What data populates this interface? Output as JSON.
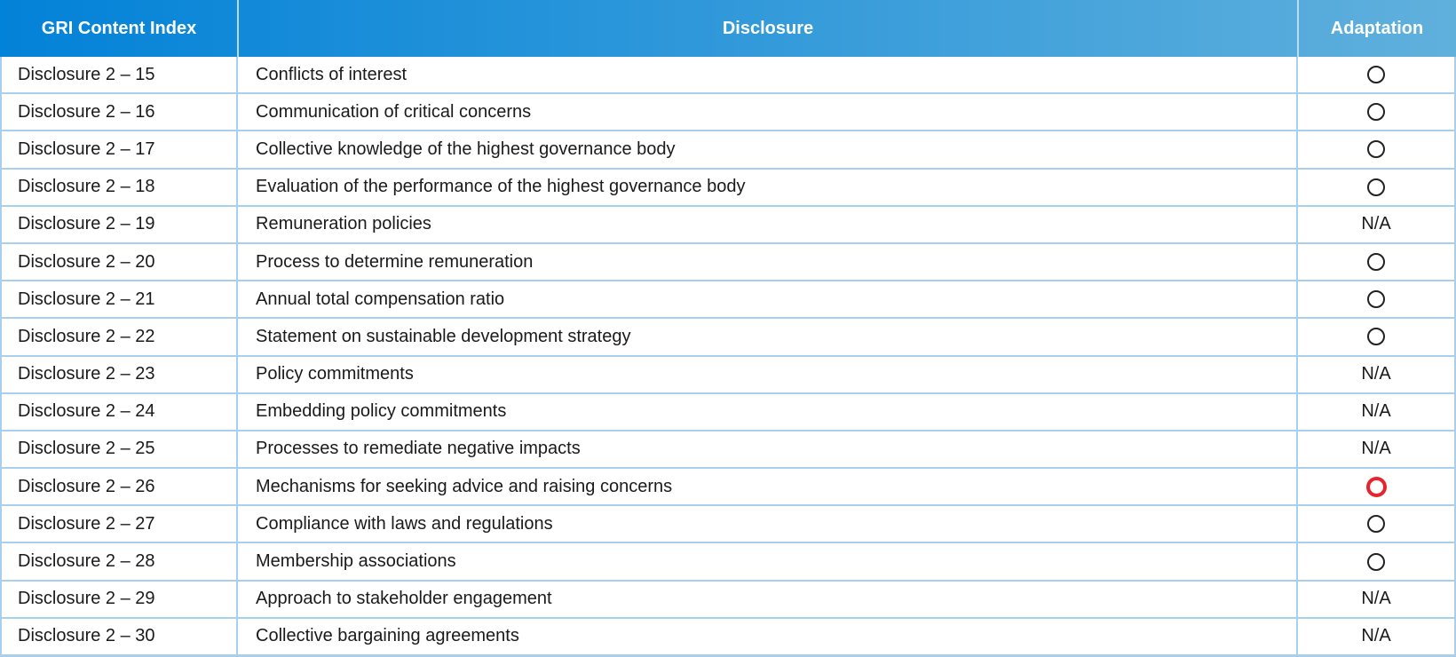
{
  "table": {
    "columns": [
      {
        "label": "GRI Content Index"
      },
      {
        "label": "Disclosure"
      },
      {
        "label": "Adaptation"
      }
    ],
    "adaptation_na_label": "N/A",
    "rows": [
      {
        "index": "Disclosure 2 – 15",
        "disclosure": "Conflicts of interest",
        "adaptation": "circle"
      },
      {
        "index": "Disclosure 2 – 16",
        "disclosure": "Communication of critical concerns",
        "adaptation": "circle"
      },
      {
        "index": "Disclosure 2 – 17",
        "disclosure": "Collective knowledge of the highest governance body",
        "adaptation": "circle"
      },
      {
        "index": "Disclosure 2 – 18",
        "disclosure": "Evaluation of the performance of the highest governance body",
        "adaptation": "circle"
      },
      {
        "index": "Disclosure 2 – 19",
        "disclosure": "Remuneration policies",
        "adaptation": "N/A"
      },
      {
        "index": "Disclosure 2 – 20",
        "disclosure": "Process to determine remuneration",
        "adaptation": "circle"
      },
      {
        "index": "Disclosure 2 – 21",
        "disclosure": "Annual total compensation ratio",
        "adaptation": "circle"
      },
      {
        "index": "Disclosure 2 – 22",
        "disclosure": "Statement on sustainable development strategy",
        "adaptation": "circle"
      },
      {
        "index": "Disclosure 2 – 23",
        "disclosure": "Policy commitments",
        "adaptation": "N/A"
      },
      {
        "index": "Disclosure 2 – 24",
        "disclosure": "Embedding policy commitments",
        "adaptation": "N/A"
      },
      {
        "index": "Disclosure 2 – 25",
        "disclosure": "Processes to remediate negative impacts",
        "adaptation": "N/A"
      },
      {
        "index": "Disclosure 2 – 26",
        "disclosure": "Mechanisms for seeking advice and raising concerns",
        "adaptation": "circle-red"
      },
      {
        "index": "Disclosure 2 – 27",
        "disclosure": "Compliance with laws and regulations",
        "adaptation": "circle"
      },
      {
        "index": "Disclosure 2 – 28",
        "disclosure": "Membership associations",
        "adaptation": "circle"
      },
      {
        "index": "Disclosure 2 – 29",
        "disclosure": "Approach to stakeholder engagement",
        "adaptation": "N/A"
      },
      {
        "index": "Disclosure 2 – 30",
        "disclosure": "Collective bargaining agreements",
        "adaptation": "N/A"
      }
    ]
  },
  "colors": {
    "header_gradient_left": "#0282d8",
    "header_gradient_right": "#60b0dc",
    "row_border": "#a9cfee",
    "red_circle": "#e8232e"
  }
}
